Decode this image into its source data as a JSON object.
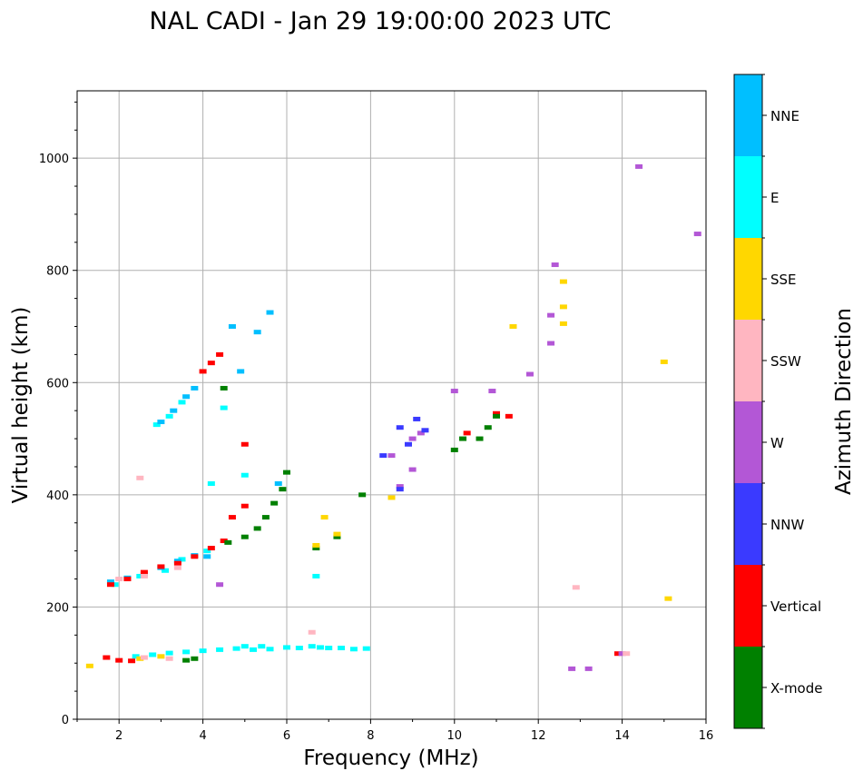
{
  "chart_data": {
    "type": "scatter",
    "title": "NAL CADI - Jan 29 19:00:00 2023 UTC",
    "xlabel": "Frequency (MHz)",
    "ylabel": "Virtual height (km)",
    "xlim": [
      1,
      16
    ],
    "ylim": [
      0,
      1120
    ],
    "xticks": [
      2,
      4,
      6,
      8,
      10,
      12,
      14,
      16
    ],
    "yticks": [
      0,
      200,
      400,
      600,
      800,
      1000
    ],
    "grid": true,
    "colorbar": {
      "label": "Azimuth Direction",
      "entries": [
        {
          "name": "X-mode",
          "color": "#008000"
        },
        {
          "name": "Vertical",
          "color": "#ff0000"
        },
        {
          "name": "NNW",
          "color": "#3a3aff"
        },
        {
          "name": "W",
          "color": "#b357d6"
        },
        {
          "name": "SSW",
          "color": "#ffb6c1"
        },
        {
          "name": "SSE",
          "color": "#ffd700"
        },
        {
          "name": "E",
          "color": "#00ffff"
        },
        {
          "name": "NNE",
          "color": "#00bfff"
        }
      ]
    },
    "series": [
      {
        "name": "E",
        "points": [
          [
            2.4,
            112
          ],
          [
            2.8,
            115
          ],
          [
            3.2,
            118
          ],
          [
            3.6,
            120
          ],
          [
            4.0,
            122
          ],
          [
            4.4,
            124
          ],
          [
            4.8,
            126
          ],
          [
            5.0,
            130
          ],
          [
            5.2,
            124
          ],
          [
            5.4,
            130
          ],
          [
            5.6,
            125
          ],
          [
            6.0,
            128
          ],
          [
            6.3,
            127
          ],
          [
            6.6,
            130
          ],
          [
            6.8,
            128
          ],
          [
            7.0,
            127
          ],
          [
            7.3,
            127
          ],
          [
            7.6,
            125
          ],
          [
            7.9,
            126
          ],
          [
            1.9,
            240
          ],
          [
            2.5,
            255
          ],
          [
            3.1,
            265
          ],
          [
            3.5,
            285
          ],
          [
            4.1,
            300
          ],
          [
            2.9,
            525
          ],
          [
            3.2,
            540
          ],
          [
            3.5,
            565
          ],
          [
            4.2,
            420
          ],
          [
            4.5,
            555
          ],
          [
            5.0,
            435
          ],
          [
            6.7,
            255
          ]
        ]
      },
      {
        "name": "NNE",
        "points": [
          [
            1.8,
            245
          ],
          [
            2.2,
            252
          ],
          [
            2.6,
            258
          ],
          [
            3.0,
            270
          ],
          [
            3.4,
            282
          ],
          [
            3.8,
            292
          ],
          [
            3.0,
            530
          ],
          [
            3.3,
            550
          ],
          [
            3.6,
            575
          ],
          [
            3.8,
            590
          ],
          [
            4.7,
            700
          ],
          [
            5.3,
            690
          ],
          [
            5.6,
            725
          ],
          [
            4.9,
            620
          ],
          [
            5.8,
            420
          ],
          [
            4.1,
            290
          ]
        ]
      },
      {
        "name": "Vertical",
        "points": [
          [
            1.7,
            110
          ],
          [
            2.0,
            105
          ],
          [
            2.3,
            104
          ],
          [
            1.8,
            240
          ],
          [
            2.2,
            250
          ],
          [
            2.6,
            262
          ],
          [
            3.0,
            272
          ],
          [
            3.4,
            278
          ],
          [
            3.8,
            290
          ],
          [
            4.2,
            305
          ],
          [
            4.5,
            318
          ],
          [
            4.0,
            620
          ],
          [
            4.2,
            635
          ],
          [
            4.4,
            650
          ],
          [
            5.0,
            490
          ],
          [
            5.0,
            380
          ],
          [
            4.7,
            360
          ],
          [
            11.0,
            545
          ],
          [
            11.3,
            540
          ],
          [
            10.3,
            510
          ],
          [
            13.9,
            117
          ]
        ]
      },
      {
        "name": "X-mode",
        "points": [
          [
            3.6,
            105
          ],
          [
            3.8,
            108
          ],
          [
            4.6,
            315
          ],
          [
            5.0,
            325
          ],
          [
            5.3,
            340
          ],
          [
            5.5,
            360
          ],
          [
            5.7,
            385
          ],
          [
            5.9,
            410
          ],
          [
            6.0,
            440
          ],
          [
            4.5,
            590
          ],
          [
            10.0,
            480
          ],
          [
            10.2,
            500
          ],
          [
            10.6,
            500
          ],
          [
            10.8,
            520
          ],
          [
            11.0,
            540
          ],
          [
            6.7,
            305
          ],
          [
            7.2,
            325
          ],
          [
            7.8,
            400
          ]
        ]
      },
      {
        "name": "W",
        "points": [
          [
            8.5,
            470
          ],
          [
            8.7,
            415
          ],
          [
            9.0,
            500
          ],
          [
            9.2,
            510
          ],
          [
            9.0,
            445
          ],
          [
            10.0,
            585
          ],
          [
            10.9,
            585
          ],
          [
            12.3,
            720
          ],
          [
            12.3,
            670
          ],
          [
            12.4,
            810
          ],
          [
            12.8,
            90
          ],
          [
            13.2,
            90
          ],
          [
            14.0,
            117
          ],
          [
            14.4,
            985
          ],
          [
            15.8,
            865
          ],
          [
            11.8,
            615
          ],
          [
            4.4,
            240
          ]
        ]
      },
      {
        "name": "NNW",
        "points": [
          [
            8.3,
            470
          ],
          [
            8.7,
            520
          ],
          [
            9.1,
            535
          ],
          [
            9.3,
            515
          ],
          [
            8.7,
            410
          ],
          [
            8.9,
            490
          ]
        ]
      },
      {
        "name": "SSE",
        "points": [
          [
            1.3,
            95
          ],
          [
            2.5,
            108
          ],
          [
            3.0,
            112
          ],
          [
            6.7,
            310
          ],
          [
            7.2,
            330
          ],
          [
            6.9,
            360
          ],
          [
            8.5,
            395
          ],
          [
            12.6,
            780
          ],
          [
            12.6,
            735
          ],
          [
            12.6,
            705
          ],
          [
            15.0,
            637
          ],
          [
            15.1,
            215
          ],
          [
            11.4,
            700
          ]
        ]
      },
      {
        "name": "SSW",
        "points": [
          [
            2.6,
            110
          ],
          [
            3.2,
            108
          ],
          [
            2.0,
            250
          ],
          [
            2.6,
            255
          ],
          [
            3.4,
            270
          ],
          [
            12.9,
            235
          ],
          [
            14.1,
            117
          ],
          [
            6.6,
            155
          ],
          [
            2.5,
            430
          ]
        ]
      }
    ]
  }
}
